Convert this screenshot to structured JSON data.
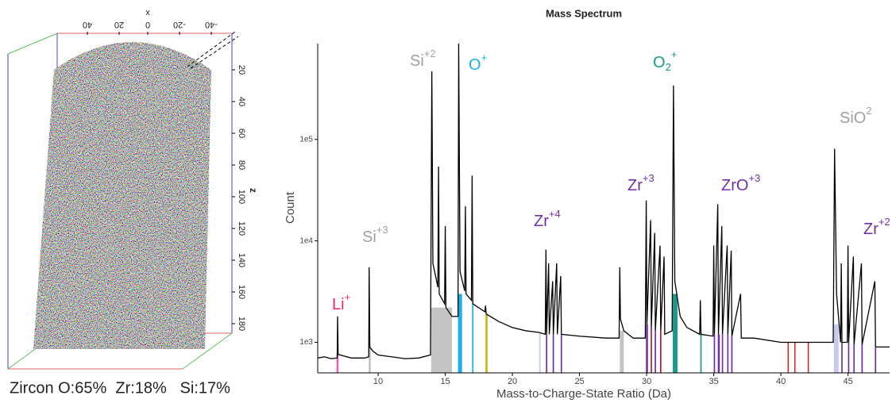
{
  "chart_data": [
    {
      "type": "point-cloud",
      "xticks": [
        40,
        20,
        0,
        -20,
        -40
      ],
      "xlabel": "x",
      "zticks": [
        20,
        40,
        60,
        80,
        100,
        120,
        140,
        160,
        180
      ],
      "zlabel": "z",
      "caption": "Zircon O:65%  Zr:18%   Si:17%"
    },
    {
      "type": "line",
      "title": "Mass Spectrum",
      "xlabel": "Mass-to-Charge-State Ratio (Da)",
      "ylabel": "Count",
      "color": "#000000",
      "log_y": true,
      "xlim": [
        5.5,
        48.1
      ],
      "xticks": [
        10,
        15,
        20,
        25,
        30,
        35,
        40,
        45
      ],
      "ylim": [
        500,
        880000
      ],
      "yticks": [
        {
          "value": 1000,
          "label": "1e3"
        },
        {
          "value": 10000,
          "label": "1e4"
        },
        {
          "value": 100000,
          "label": "1e5"
        }
      ],
      "x": [
        5.5,
        6.0,
        6.5,
        6.95,
        6.98,
        7.02,
        8.0,
        9.0,
        9.3,
        9.33,
        9.38,
        9.6,
        10.0,
        11.0,
        12.0,
        13.0,
        13.9,
        14.0,
        14.08,
        14.45,
        14.5,
        14.55,
        14.95,
        15.0,
        15.05,
        15.5,
        15.95,
        16.0,
        16.1,
        16.45,
        16.5,
        16.55,
        16.95,
        17.0,
        17.05,
        17.95,
        18.0,
        18.05,
        19.0,
        20.0,
        21.0,
        22.0,
        22.45,
        22.5,
        22.55,
        22.7,
        22.75,
        23.0,
        23.05,
        23.3,
        23.35,
        23.6,
        23.65,
        25.0,
        27.0,
        27.95,
        28.0,
        28.05,
        28.3,
        29.0,
        29.9,
        29.97,
        30.02,
        30.3,
        30.35,
        30.6,
        30.65,
        31.0,
        31.05,
        31.3,
        31.35,
        31.9,
        32.0,
        32.1,
        32.5,
        33.0,
        33.95,
        34.0,
        34.05,
        34.95,
        35.0,
        35.05,
        35.3,
        35.35,
        35.6,
        35.65,
        36.0,
        36.05,
        36.3,
        36.35,
        37.0,
        37.05,
        38.0,
        40.0,
        42.0,
        43.9,
        44.0,
        44.15,
        44.45,
        44.5,
        44.55,
        44.95,
        45.0,
        45.05,
        45.4,
        45.45,
        46.0,
        46.05,
        47.0,
        47.05,
        48.1
      ],
      "values": [
        700,
        720,
        690,
        700,
        1800,
        760,
        700,
        700,
        720,
        5500,
        900,
        820,
        750,
        720,
        690,
        700,
        750,
        470000,
        6000,
        3500,
        54000,
        3000,
        2400,
        14000,
        2200,
        1800,
        1800,
        880000,
        5000,
        3200,
        22000,
        3000,
        2600,
        44000,
        2400,
        2000,
        2300,
        1900,
        1600,
        1400,
        1300,
        1250,
        1200,
        8200,
        1200,
        6000,
        1200,
        4000,
        1200,
        6000,
        1200,
        4500,
        1200,
        1150,
        1100,
        1100,
        5500,
        1700,
        1300,
        1100,
        1100,
        25000,
        1500,
        16000,
        1400,
        12000,
        1300,
        9000,
        1300,
        7000,
        1200,
        1300,
        340000,
        4000,
        1800,
        1400,
        1200,
        2600,
        1200,
        1150,
        9000,
        1200,
        23000,
        1200,
        14000,
        1200,
        9000,
        1200,
        8000,
        1150,
        3000,
        1100,
        1100,
        1000,
        1000,
        1000,
        81000,
        3000,
        1000,
        6000,
        1000,
        1000,
        9000,
        1000,
        7000,
        950,
        6000,
        950,
        4000,
        900,
        900
      ],
      "ranges": [
        {
          "from": 6.9,
          "to": 7.05,
          "color": "#e060c0",
          "top": 760
        },
        {
          "from": 9.3,
          "to": 9.45,
          "color": "#c0c0c0",
          "top": 900
        },
        {
          "from": 13.95,
          "to": 15.5,
          "color": "#c4c4c4",
          "top": 2200
        },
        {
          "from": 15.95,
          "to": 16.25,
          "color": "#1ab0e8",
          "top": 3000
        },
        {
          "from": 17.0,
          "to": 17.1,
          "color": "#1ab0e8",
          "top": 2400
        },
        {
          "from": 18.0,
          "to": 18.15,
          "color": "#c8b400",
          "top": 1900
        },
        {
          "from": 22.0,
          "to": 22.1,
          "color": "#c8c8f0",
          "top": 1250
        },
        {
          "from": 22.5,
          "to": 22.6,
          "color": "#7030a0",
          "top": 1200
        },
        {
          "from": 23.0,
          "to": 23.1,
          "color": "#7030a0",
          "top": 1200
        },
        {
          "from": 23.6,
          "to": 23.7,
          "color": "#7030a0",
          "top": 1200
        },
        {
          "from": 28.0,
          "to": 28.3,
          "color": "#c4c4c4",
          "top": 1300
        },
        {
          "from": 29.95,
          "to": 30.1,
          "color": "#7030a0",
          "top": 1500
        },
        {
          "from": 30.3,
          "to": 30.4,
          "color": "#c0143c",
          "top": 1400
        },
        {
          "from": 30.6,
          "to": 30.7,
          "color": "#7030a0",
          "top": 1300
        },
        {
          "from": 31.0,
          "to": 31.1,
          "color": "#c0143c",
          "top": 1300
        },
        {
          "from": 31.95,
          "to": 32.3,
          "color": "#1a9a8a",
          "top": 3000
        },
        {
          "from": 34.0,
          "to": 34.1,
          "color": "#1a9a8a",
          "top": 1200
        },
        {
          "from": 35.0,
          "to": 35.1,
          "color": "#7030a0",
          "top": 1200
        },
        {
          "from": 35.3,
          "to": 35.45,
          "color": "#7030a0",
          "top": 1200
        },
        {
          "from": 35.6,
          "to": 35.7,
          "color": "#7030a0",
          "top": 1200
        },
        {
          "from": 36.0,
          "to": 36.1,
          "color": "#7030a0",
          "top": 1200
        },
        {
          "from": 36.3,
          "to": 36.4,
          "color": "#7030a0",
          "top": 1150
        },
        {
          "from": 40.5,
          "to": 40.55,
          "color": "#e02020",
          "top": 1000
        },
        {
          "from": 41.0,
          "to": 41.05,
          "color": "#e02020",
          "top": 1000
        },
        {
          "from": 42.0,
          "to": 42.05,
          "color": "#e02020",
          "top": 1000
        },
        {
          "from": 43.95,
          "to": 44.3,
          "color": "#c8c8f0",
          "top": 1500
        },
        {
          "from": 44.5,
          "to": 44.6,
          "color": "#7030a0",
          "top": 1000
        },
        {
          "from": 45.0,
          "to": 45.1,
          "color": "#7030a0",
          "top": 1000
        },
        {
          "from": 45.4,
          "to": 45.5,
          "color": "#7030a0",
          "top": 950
        },
        {
          "from": 46.0,
          "to": 46.1,
          "color": "#7030a0",
          "top": 950
        },
        {
          "from": 47.0,
          "to": 47.1,
          "color": "#7030a0",
          "top": 900
        }
      ],
      "annotations": [
        {
          "text": "Li",
          "sup": "+",
          "color": "#e8217a"
        },
        {
          "text": "Si",
          "sup": "+3",
          "color": "#a0a0a0"
        },
        {
          "text": "Si",
          "sup": "+2",
          "color": "#a0a0a0"
        },
        {
          "text": "O",
          "sup": "+",
          "color": "#1ab0e8"
        },
        {
          "text": "O",
          "sub": "2",
          "sup": "+",
          "color": "#1a9a8a"
        },
        {
          "text": "Zr",
          "sup": "+4",
          "color": "#7030a0"
        },
        {
          "text": "Zr",
          "sup": "+3",
          "color": "#7030a0"
        },
        {
          "text": "ZrO",
          "sup": "+3",
          "color": "#7030a0"
        },
        {
          "text": "SiO",
          "sup": "2",
          "color": "#a0a0a0"
        },
        {
          "text": "Zr",
          "sup": "+2",
          "color": "#7030a0"
        }
      ]
    }
  ]
}
